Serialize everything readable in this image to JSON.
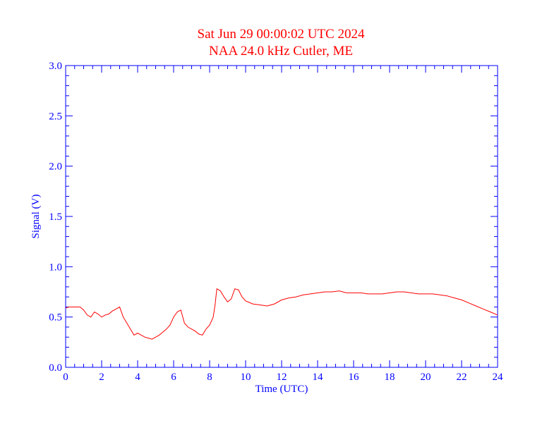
{
  "chart_data": {
    "type": "line",
    "title": "Sat Jun 29 00:00:02 UTC 2024",
    "subtitle": "NAA 24.0 kHz Cutler, ME",
    "xlabel": "Time (UTC)",
    "ylabel": "Signal (V)",
    "xlim": [
      0,
      24
    ],
    "ylim": [
      0.0,
      3.0
    ],
    "xticks": [
      "0",
      "2",
      "4",
      "6",
      "8",
      "10",
      "12",
      "14",
      "16",
      "18",
      "20",
      "22",
      "24"
    ],
    "yticks": [
      "0.0",
      "0.5",
      "1.0",
      "1.5",
      "2.0",
      "2.5",
      "3.0"
    ],
    "grid": false,
    "colors": {
      "title": "#ff0000",
      "axes": "#0000ff",
      "series": "#ff0000"
    },
    "series": [
      {
        "x": [
          0.0,
          0.2,
          0.4,
          0.6,
          0.8,
          1.0,
          1.2,
          1.4,
          1.6,
          1.8,
          2.0,
          2.2,
          2.4,
          2.6,
          2.8,
          3.0,
          3.2,
          3.4,
          3.6,
          3.8,
          4.0,
          4.2,
          4.4,
          4.6,
          4.8,
          5.0,
          5.2,
          5.4,
          5.6,
          5.8,
          6.0,
          6.2,
          6.4,
          6.6,
          6.8,
          7.0,
          7.2,
          7.4,
          7.6,
          7.8,
          8.0,
          8.2,
          8.3,
          8.4,
          8.5,
          8.6,
          8.8,
          9.0,
          9.2,
          9.4,
          9.6,
          9.8,
          10.0,
          10.4,
          10.8,
          11.2,
          11.6,
          12.0,
          12.4,
          12.8,
          13.2,
          13.6,
          14.0,
          14.4,
          14.8,
          15.2,
          15.6,
          16.0,
          16.4,
          16.8,
          17.2,
          17.6,
          18.0,
          18.4,
          18.8,
          19.2,
          19.6,
          20.0,
          20.4,
          20.8,
          21.2,
          21.6,
          22.0,
          22.4,
          22.8,
          23.2,
          23.6,
          24.0
        ],
        "y": [
          0.59,
          0.6,
          0.6,
          0.6,
          0.6,
          0.57,
          0.52,
          0.5,
          0.55,
          0.53,
          0.5,
          0.52,
          0.53,
          0.56,
          0.58,
          0.6,
          0.5,
          0.44,
          0.38,
          0.32,
          0.34,
          0.32,
          0.3,
          0.29,
          0.28,
          0.3,
          0.32,
          0.35,
          0.38,
          0.42,
          0.5,
          0.55,
          0.57,
          0.44,
          0.4,
          0.38,
          0.36,
          0.33,
          0.32,
          0.38,
          0.42,
          0.5,
          0.62,
          0.78,
          0.77,
          0.76,
          0.7,
          0.65,
          0.68,
          0.78,
          0.77,
          0.7,
          0.66,
          0.63,
          0.62,
          0.61,
          0.63,
          0.67,
          0.69,
          0.7,
          0.72,
          0.73,
          0.74,
          0.75,
          0.75,
          0.76,
          0.74,
          0.74,
          0.74,
          0.73,
          0.73,
          0.73,
          0.74,
          0.75,
          0.75,
          0.74,
          0.73,
          0.73,
          0.73,
          0.72,
          0.71,
          0.69,
          0.67,
          0.64,
          0.61,
          0.58,
          0.55,
          0.52
        ]
      }
    ]
  }
}
